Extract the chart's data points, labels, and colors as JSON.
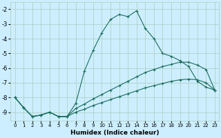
{
  "xlabel": "Humidex (Indice chaleur)",
  "bg_color": "#cceeff",
  "grid_color": "#aaccbb",
  "line_color": "#1a6b5a",
  "xlim": [
    -0.5,
    23.5
  ],
  "ylim": [
    -9.6,
    -1.5
  ],
  "yticks": [
    -9,
    -8,
    -7,
    -6,
    -5,
    -4,
    -3,
    -2
  ],
  "xticks": [
    0,
    1,
    2,
    3,
    4,
    5,
    6,
    7,
    8,
    9,
    10,
    11,
    12,
    13,
    14,
    15,
    16,
    17,
    18,
    19,
    20,
    21,
    22,
    23
  ],
  "line1_x": [
    0,
    1,
    2,
    3,
    4,
    5,
    6,
    7,
    8,
    9,
    10,
    11,
    12,
    13,
    14,
    15,
    16,
    17,
    18,
    19,
    20,
    21,
    22,
    23
  ],
  "line1_y": [
    -8.0,
    -8.7,
    -9.3,
    -9.2,
    -9.0,
    -9.3,
    -9.3,
    -8.4,
    -6.2,
    -4.8,
    -3.6,
    -2.7,
    -2.35,
    -2.5,
    -2.1,
    -3.3,
    -4.0,
    -5.0,
    -5.2,
    -5.5,
    -5.9,
    -6.9,
    -7.3,
    -7.5
  ],
  "line2_x": [
    0,
    1,
    2,
    3,
    4,
    5,
    6,
    7,
    8,
    9,
    10,
    11,
    12,
    13,
    14,
    15,
    16,
    17,
    18,
    19,
    20,
    21,
    22,
    23
  ],
  "line2_y": [
    -8.0,
    -8.7,
    -9.3,
    -9.2,
    -9.0,
    -9.3,
    -9.3,
    -8.75,
    -8.45,
    -8.1,
    -7.8,
    -7.5,
    -7.2,
    -6.9,
    -6.6,
    -6.3,
    -6.1,
    -5.9,
    -5.75,
    -5.6,
    -5.6,
    -5.8,
    -6.1,
    -7.5
  ],
  "line3_x": [
    0,
    1,
    2,
    3,
    4,
    5,
    6,
    7,
    8,
    9,
    10,
    11,
    12,
    13,
    14,
    15,
    16,
    17,
    18,
    19,
    20,
    21,
    22,
    23
  ],
  "line3_y": [
    -8.0,
    -8.7,
    -9.3,
    -9.2,
    -9.0,
    -9.3,
    -9.3,
    -9.0,
    -8.8,
    -8.55,
    -8.35,
    -8.15,
    -7.95,
    -7.75,
    -7.55,
    -7.35,
    -7.2,
    -7.05,
    -6.9,
    -6.8,
    -6.75,
    -6.8,
    -7.0,
    -7.5
  ]
}
